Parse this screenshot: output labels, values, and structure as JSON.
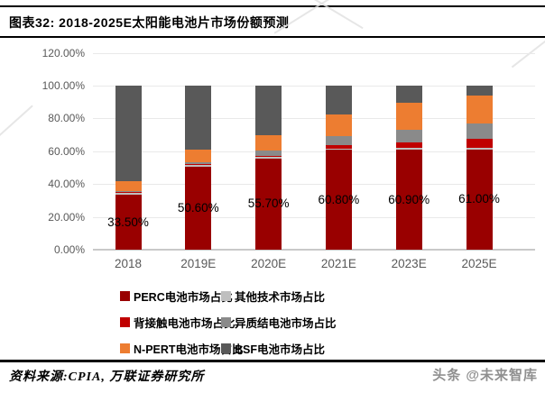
{
  "header": {
    "title": "图表32: 2018-2025E太阳能电池片市场份额预测"
  },
  "footer": {
    "source": "资料来源:CPIA, 万联证券研究所",
    "watermark": "头条 @未来智库"
  },
  "chart_data": {
    "type": "bar",
    "stacked": true,
    "title": "2018-2025E太阳能电池片市场份额预测",
    "categories": [
      "2018",
      "2019E",
      "2020E",
      "2021E",
      "2023E",
      "2025E"
    ],
    "series": [
      {
        "key": "perc",
        "name": "PERC电池市场占比",
        "color": "#990000",
        "values": [
          33.5,
          50.6,
          55.7,
          60.8,
          60.9,
          61.0
        ]
      },
      {
        "key": "other-tech",
        "name": "其他技术市场占比",
        "color": "#bfbfbf",
        "values": [
          1.5,
          1.4,
          1.0,
          0.7,
          1.3,
          1.0
        ]
      },
      {
        "key": "back-contact",
        "name": "背接触电池市场占比",
        "color": "#c00000",
        "values": [
          0.2,
          0.3,
          0.5,
          2.0,
          3.3,
          5.5
        ]
      },
      {
        "key": "hjt",
        "name": "异质结电池市场占比",
        "color": "#8a8a8a",
        "values": [
          0.4,
          1.0,
          3.0,
          6.0,
          7.5,
          9.5
        ]
      },
      {
        "key": "n-pert",
        "name": "N-PERT电池市场占比",
        "color": "#ed7d31",
        "values": [
          6.0,
          7.7,
          9.5,
          13.0,
          16.5,
          17.0
        ]
      },
      {
        "key": "bsf",
        "name": "BSF电池市场占比",
        "color": "#595959",
        "values": [
          58.4,
          39.0,
          30.3,
          17.5,
          10.5,
          6.0
        ]
      }
    ],
    "data_labels": {
      "series": "PERC电池市场占比",
      "values": [
        "33.50%",
        "50.60%",
        "55.70%",
        "60.80%",
        "60.90%",
        "61.00%"
      ]
    },
    "ylim": [
      0,
      120
    ],
    "yticks": [
      "0.00%",
      "20.00%",
      "40.00%",
      "60.00%",
      "80.00%",
      "100.00%",
      "120.00%"
    ],
    "ytick_step": 20,
    "grid": true,
    "legend_position": "bottom",
    "layout_colors": {
      "grid": "#e9e9e9",
      "axis": "#c9c9c9",
      "tick_text": "#595959",
      "data_label_text": "#000000"
    }
  }
}
